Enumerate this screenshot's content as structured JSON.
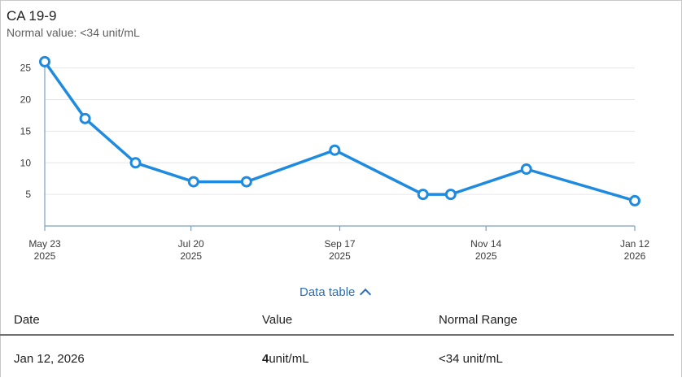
{
  "header": {
    "title": "CA 19-9",
    "subtitle": "Normal value: <34 unit/mL"
  },
  "colors": {
    "series": "#1f8be0",
    "grid": "#e6e6e6",
    "axis": "#7b9fc2",
    "link": "#2c6fb7"
  },
  "chart_data": {
    "type": "line",
    "title": "CA 19-9",
    "x_axis": {
      "type": "date",
      "range": [
        "2025-05-23",
        "2026-01-12"
      ],
      "ticks": [
        {
          "date": "2025-05-23",
          "label1": "May 23",
          "label2": "2025"
        },
        {
          "date": "2025-07-20",
          "label1": "Jul 20",
          "label2": "2025"
        },
        {
          "date": "2025-09-17",
          "label1": "Sep 17",
          "label2": "2025"
        },
        {
          "date": "2025-11-14",
          "label1": "Nov 14",
          "label2": "2025"
        },
        {
          "date": "2026-01-12",
          "label1": "Jan 12",
          "label2": "2026"
        }
      ]
    },
    "y_axis": {
      "ticks": [
        5,
        10,
        15,
        20,
        25
      ],
      "range": [
        0,
        26.5
      ]
    },
    "grid": true,
    "series": [
      {
        "points": [
          {
            "x": "2025-05-23",
            "y": 26
          },
          {
            "x": "2025-06-08",
            "y": 17
          },
          {
            "x": "2025-06-28",
            "y": 10
          },
          {
            "x": "2025-07-21",
            "y": 7
          },
          {
            "x": "2025-08-11",
            "y": 7
          },
          {
            "x": "2025-09-15",
            "y": 12
          },
          {
            "x": "2025-10-20",
            "y": 5
          },
          {
            "x": "2025-10-31",
            "y": 5
          },
          {
            "x": "2025-11-30",
            "y": 9
          },
          {
            "x": "2026-01-12",
            "y": 4
          }
        ]
      }
    ]
  },
  "data_table": {
    "toggle_label": "Data table",
    "headers": {
      "date": "Date",
      "value": "Value",
      "range": "Normal Range"
    },
    "rows": [
      {
        "date": "Jan 12, 2026",
        "value": "4",
        "unit": "unit/mL",
        "range": "<34 unit/mL"
      }
    ]
  }
}
